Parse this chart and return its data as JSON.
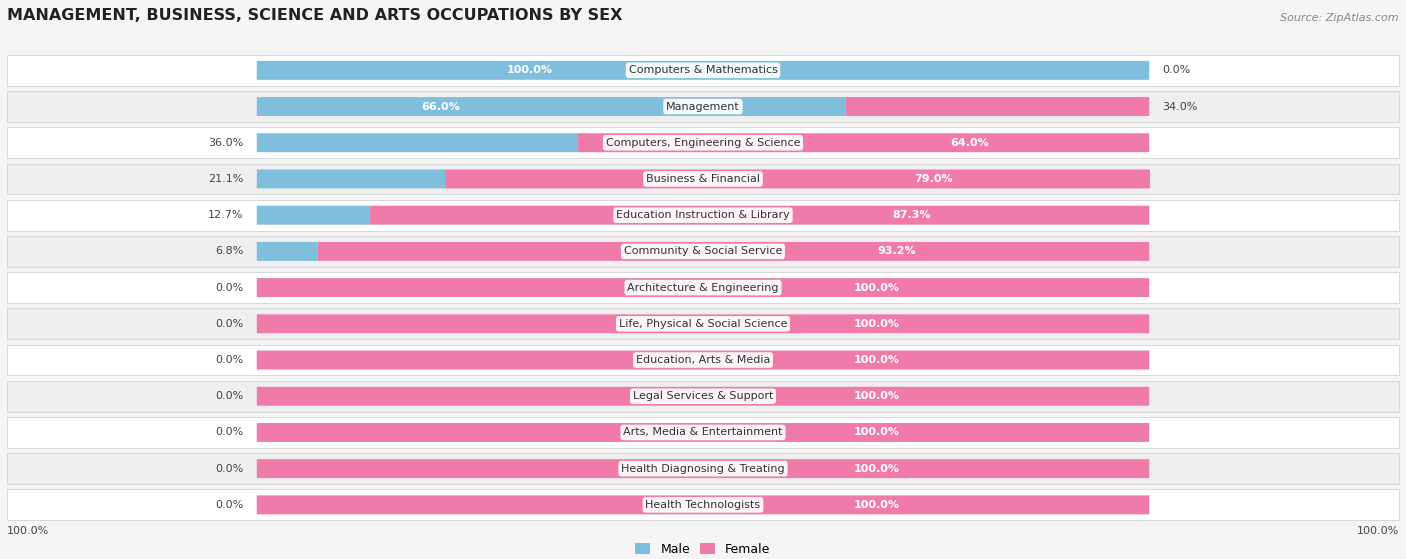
{
  "title": "MANAGEMENT, BUSINESS, SCIENCE AND ARTS OCCUPATIONS BY SEX",
  "source": "Source: ZipAtlas.com",
  "categories": [
    "Computers & Mathematics",
    "Management",
    "Computers, Engineering & Science",
    "Business & Financial",
    "Education Instruction & Library",
    "Community & Social Service",
    "Architecture & Engineering",
    "Life, Physical & Social Science",
    "Education, Arts & Media",
    "Legal Services & Support",
    "Arts, Media & Entertainment",
    "Health Diagnosing & Treating",
    "Health Technologists"
  ],
  "male": [
    100.0,
    66.0,
    36.0,
    21.1,
    12.7,
    6.8,
    0.0,
    0.0,
    0.0,
    0.0,
    0.0,
    0.0,
    0.0
  ],
  "female": [
    0.0,
    34.0,
    64.0,
    79.0,
    87.3,
    93.2,
    100.0,
    100.0,
    100.0,
    100.0,
    100.0,
    100.0,
    100.0
  ],
  "male_color": "#7fbfdd",
  "female_color": "#f07aaa",
  "male_label": "Male",
  "female_label": "Female",
  "row_colors": [
    "#ffffff",
    "#efefef"
  ]
}
